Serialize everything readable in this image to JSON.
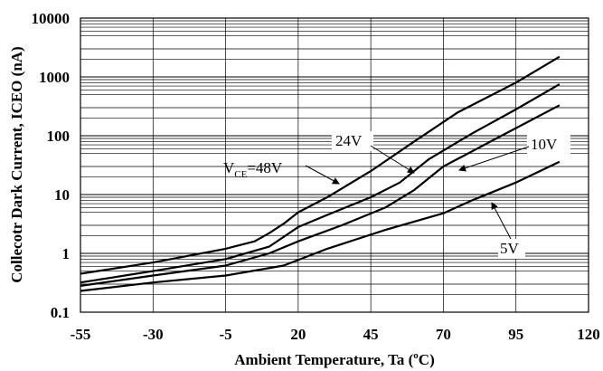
{
  "chart_data": {
    "type": "line",
    "title": "",
    "xlabel": "Ambient Temperature, Ta (°C)",
    "xlabel_parts": {
      "before": "Ambient Temperature, Ta (",
      "sup": "o",
      "after": "C)"
    },
    "ylabel": "Collecotr Dark Current, ICEO (nA)",
    "xlim": [
      -55,
      120
    ],
    "ylim": [
      0.1,
      10000
    ],
    "yscale": "log",
    "grid": true,
    "x_ticks": [
      -55,
      -30,
      -5,
      20,
      45,
      70,
      95,
      120
    ],
    "x_tick_labels": [
      "-55",
      "-30",
      "-5",
      "20",
      "45",
      "70",
      "95",
      "120"
    ],
    "y_ticks": [
      0.1,
      1,
      10,
      100,
      1000,
      10000
    ],
    "y_tick_labels": [
      "0.1",
      "1",
      "10",
      "100",
      "1000",
      "10000"
    ],
    "series": [
      {
        "name": "VCE=48V",
        "x": [
          -55,
          -30,
          -5,
          5,
          10,
          15,
          20,
          30,
          45,
          60,
          75,
          95,
          110
        ],
        "y": [
          0.45,
          0.7,
          1.2,
          1.6,
          2.2,
          3.2,
          5,
          9,
          25,
          80,
          250,
          800,
          2200
        ]
      },
      {
        "name": "24V",
        "x": [
          -55,
          -30,
          -5,
          10,
          20,
          30,
          45,
          55,
          65,
          80,
          95,
          110
        ],
        "y": [
          0.32,
          0.5,
          0.8,
          1.3,
          2.8,
          4.5,
          9,
          16,
          40,
          110,
          280,
          750
        ]
      },
      {
        "name": "10V",
        "x": [
          -55,
          -30,
          -5,
          10,
          20,
          35,
          50,
          60,
          70,
          90,
          110
        ],
        "y": [
          0.28,
          0.42,
          0.62,
          1.0,
          1.6,
          3.0,
          6,
          12,
          30,
          100,
          330
        ]
      },
      {
        "name": "5V",
        "x": [
          -55,
          -30,
          -5,
          15,
          30,
          50,
          70,
          80,
          95,
          110
        ],
        "y": [
          0.23,
          0.32,
          0.42,
          0.62,
          1.2,
          2.5,
          4.8,
          8,
          16,
          36
        ]
      }
    ],
    "annotations": {
      "v48": {
        "v": "V",
        "sub": "CE",
        "rest": "=48V"
      },
      "v24": "24V",
      "v10": "10V",
      "v5": "5V"
    }
  }
}
